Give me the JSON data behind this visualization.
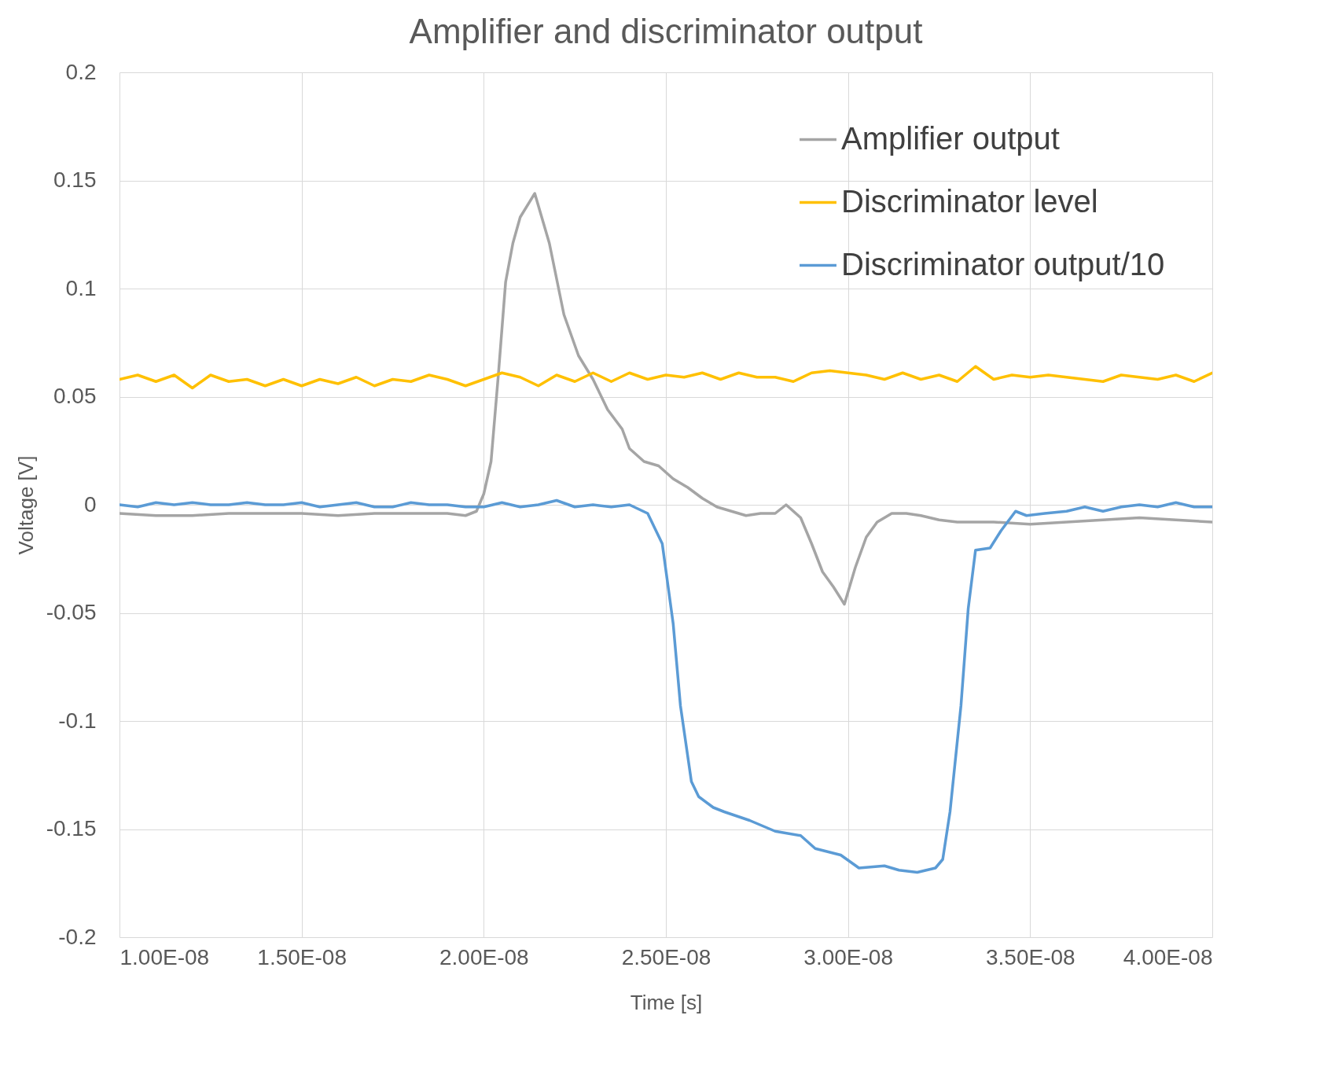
{
  "chart_data": {
    "type": "line",
    "title": "Amplifier and discriminator output",
    "xlabel": "Time [s]",
    "ylabel": "Voltage [V]",
    "xlim": [
      1e-08,
      4e-08
    ],
    "xticks": [
      {
        "value": 1e-08,
        "label": "1.00E-08"
      },
      {
        "value": 1.5e-08,
        "label": "1.50E-08"
      },
      {
        "value": 2e-08,
        "label": "2.00E-08"
      },
      {
        "value": 2.5e-08,
        "label": "2.50E-08"
      },
      {
        "value": 3e-08,
        "label": "3.00E-08"
      },
      {
        "value": 3.5e-08,
        "label": "3.50E-08"
      },
      {
        "value": 4e-08,
        "label": "4.00E-08"
      }
    ],
    "ylim": [
      -0.2,
      0.2
    ],
    "yticks": [
      -0.2,
      -0.15,
      -0.1,
      -0.05,
      0,
      0.05,
      0.1,
      0.15,
      0.2
    ],
    "grid": true,
    "legend": "top right",
    "series": [
      {
        "name": "Amplifier output",
        "color": "#a5a5a5",
        "x": [
          1e-08,
          1.1e-08,
          1.2e-08,
          1.3e-08,
          1.4e-08,
          1.5e-08,
          1.6e-08,
          1.7e-08,
          1.8e-08,
          1.9e-08,
          1.95e-08,
          1.98e-08,
          2e-08,
          2.02e-08,
          2.04e-08,
          2.06e-08,
          2.08e-08,
          2.1e-08,
          2.14e-08,
          2.18e-08,
          2.22e-08,
          2.26e-08,
          2.3e-08,
          2.34e-08,
          2.38e-08,
          2.4e-08,
          2.44e-08,
          2.48e-08,
          2.52e-08,
          2.56e-08,
          2.6e-08,
          2.64e-08,
          2.68e-08,
          2.72e-08,
          2.76e-08,
          2.8e-08,
          2.83e-08,
          2.87e-08,
          2.9e-08,
          2.93e-08,
          2.96e-08,
          2.99e-08,
          3.02e-08,
          3.05e-08,
          3.08e-08,
          3.12e-08,
          3.16e-08,
          3.2e-08,
          3.25e-08,
          3.3e-08,
          3.4e-08,
          3.5e-08,
          3.6e-08,
          3.7e-08,
          3.8e-08,
          3.9e-08,
          4e-08
        ],
        "values": [
          -0.004,
          -0.005,
          -0.005,
          -0.004,
          -0.004,
          -0.004,
          -0.005,
          -0.004,
          -0.004,
          -0.004,
          -0.005,
          -0.003,
          0.005,
          0.02,
          0.06,
          0.103,
          0.121,
          0.133,
          0.144,
          0.121,
          0.088,
          0.069,
          0.058,
          0.044,
          0.035,
          0.026,
          0.02,
          0.018,
          0.012,
          0.008,
          0.003,
          -0.001,
          -0.003,
          -0.005,
          -0.004,
          -0.004,
          0,
          -0.006,
          -0.018,
          -0.031,
          -0.038,
          -0.046,
          -0.029,
          -0.015,
          -0.008,
          -0.004,
          -0.004,
          -0.005,
          -0.007,
          -0.008,
          -0.008,
          -0.009,
          -0.008,
          -0.007,
          -0.006,
          -0.007,
          -0.008
        ]
      },
      {
        "name": "Discriminator level",
        "color": "#ffc000",
        "x": [
          1e-08,
          1.05e-08,
          1.1e-08,
          1.15e-08,
          1.2e-08,
          1.25e-08,
          1.3e-08,
          1.35e-08,
          1.4e-08,
          1.45e-08,
          1.5e-08,
          1.55e-08,
          1.6e-08,
          1.65e-08,
          1.7e-08,
          1.75e-08,
          1.8e-08,
          1.85e-08,
          1.9e-08,
          1.95e-08,
          2e-08,
          2.05e-08,
          2.1e-08,
          2.15e-08,
          2.2e-08,
          2.25e-08,
          2.3e-08,
          2.35e-08,
          2.4e-08,
          2.45e-08,
          2.5e-08,
          2.55e-08,
          2.6e-08,
          2.65e-08,
          2.7e-08,
          2.75e-08,
          2.8e-08,
          2.85e-08,
          2.9e-08,
          2.95e-08,
          3e-08,
          3.05e-08,
          3.1e-08,
          3.15e-08,
          3.2e-08,
          3.25e-08,
          3.3e-08,
          3.35e-08,
          3.4e-08,
          3.45e-08,
          3.5e-08,
          3.55e-08,
          3.6e-08,
          3.65e-08,
          3.7e-08,
          3.75e-08,
          3.8e-08,
          3.85e-08,
          3.9e-08,
          3.95e-08,
          4e-08
        ],
        "values": [
          0.058,
          0.06,
          0.057,
          0.06,
          0.054,
          0.06,
          0.057,
          0.058,
          0.055,
          0.058,
          0.055,
          0.058,
          0.056,
          0.059,
          0.055,
          0.058,
          0.057,
          0.06,
          0.058,
          0.055,
          0.058,
          0.061,
          0.059,
          0.055,
          0.06,
          0.057,
          0.061,
          0.057,
          0.061,
          0.058,
          0.06,
          0.059,
          0.061,
          0.058,
          0.061,
          0.059,
          0.059,
          0.057,
          0.061,
          0.062,
          0.061,
          0.06,
          0.058,
          0.061,
          0.058,
          0.06,
          0.057,
          0.064,
          0.058,
          0.06,
          0.059,
          0.06,
          0.059,
          0.058,
          0.057,
          0.06,
          0.059,
          0.058,
          0.06,
          0.057,
          0.061
        ]
      },
      {
        "name": "Discriminator output/10",
        "color": "#5b9bd5",
        "x": [
          1e-08,
          1.05e-08,
          1.1e-08,
          1.15e-08,
          1.2e-08,
          1.25e-08,
          1.3e-08,
          1.35e-08,
          1.4e-08,
          1.45e-08,
          1.5e-08,
          1.55e-08,
          1.6e-08,
          1.65e-08,
          1.7e-08,
          1.75e-08,
          1.8e-08,
          1.85e-08,
          1.9e-08,
          1.95e-08,
          2e-08,
          2.05e-08,
          2.1e-08,
          2.15e-08,
          2.2e-08,
          2.25e-08,
          2.3e-08,
          2.35e-08,
          2.4e-08,
          2.45e-08,
          2.49e-08,
          2.52e-08,
          2.54e-08,
          2.57e-08,
          2.59e-08,
          2.63e-08,
          2.66e-08,
          2.73e-08,
          2.8e-08,
          2.87e-08,
          2.91e-08,
          2.98e-08,
          3.03e-08,
          3.1e-08,
          3.14e-08,
          3.19e-08,
          3.24e-08,
          3.26e-08,
          3.28e-08,
          3.31e-08,
          3.33e-08,
          3.35e-08,
          3.39e-08,
          3.42e-08,
          3.46e-08,
          3.49e-08,
          3.54e-08,
          3.6e-08,
          3.65e-08,
          3.7e-08,
          3.75e-08,
          3.8e-08,
          3.85e-08,
          3.9e-08,
          3.95e-08,
          4e-08
        ],
        "values": [
          0,
          -0.001,
          0.001,
          0,
          0.001,
          0,
          0,
          0.001,
          0,
          0,
          0.001,
          -0.001,
          0,
          0.001,
          -0.001,
          -0.001,
          0.001,
          0,
          0,
          -0.001,
          -0.001,
          0.001,
          -0.001,
          0,
          0.002,
          -0.001,
          0,
          -0.001,
          0,
          -0.004,
          -0.018,
          -0.055,
          -0.093,
          -0.128,
          -0.135,
          -0.14,
          -0.142,
          -0.146,
          -0.151,
          -0.153,
          -0.159,
          -0.162,
          -0.168,
          -0.167,
          -0.169,
          -0.17,
          -0.168,
          -0.164,
          -0.142,
          -0.093,
          -0.048,
          -0.021,
          -0.02,
          -0.012,
          -0.003,
          -0.005,
          -0.004,
          -0.003,
          -0.001,
          -0.003,
          -0.001,
          0,
          -0.001,
          0.001,
          -0.001,
          -0.001
        ]
      }
    ]
  }
}
